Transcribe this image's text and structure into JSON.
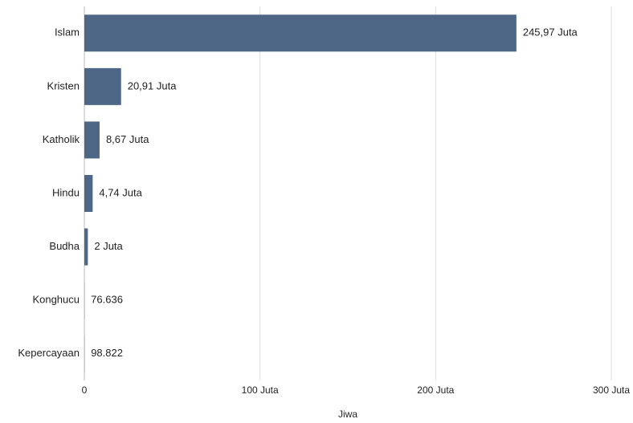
{
  "chart_data": {
    "type": "bar",
    "orientation": "horizontal",
    "categories": [
      "Islam",
      "Kristen",
      "Katholik",
      "Hindu",
      "Budha",
      "Konghucu",
      "Kepercayaan"
    ],
    "values": [
      245.97,
      20.91,
      8.67,
      4.74,
      2,
      0.076636,
      0.098822
    ],
    "value_labels": [
      "245,97 Juta",
      "20,91 Juta",
      "8,67 Juta",
      "4,74 Juta",
      "2 Juta",
      "76.636",
      "98.822"
    ],
    "color": "#4e6787",
    "xlabel": "Jiwa",
    "xlim": [
      0,
      300
    ],
    "xticks": [
      0,
      {
        "value": 100,
        "label": "100 Juta"
      },
      {
        "value": 200,
        "label": "200 Juta"
      },
      {
        "value": 300,
        "label": "300 Juta"
      }
    ],
    "grid": true
  }
}
